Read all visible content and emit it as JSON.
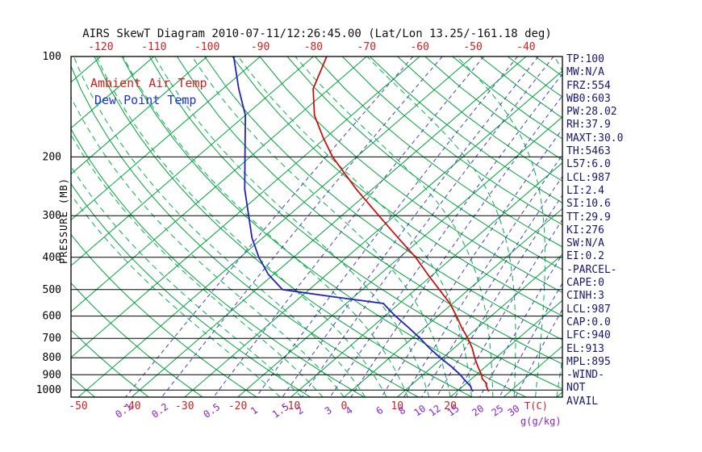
{
  "header": {
    "title": "AIRS SkewT Diagram 2010-07-11/12:26:45.00 (Lat/Lon 13.25/-161.18 deg)"
  },
  "chart_data": {
    "type": "skewt",
    "title": "AIRS SkewT Diagram 2010-07-11/12:26:45.00 (Lat/Lon 13.25/-161.18 deg)",
    "pressure_axis_label": "PRESSURE (MB)",
    "pressure_ticks": [
      100,
      200,
      300,
      400,
      500,
      600,
      700,
      800,
      900,
      1000
    ],
    "pressure_range": [
      100,
      1050
    ],
    "top_temp_ticks_c": [
      -120,
      -110,
      -100,
      -90,
      -80,
      -70,
      -60,
      -50,
      -40
    ],
    "bottom_temp_ticks_c": [
      -50,
      -40,
      -30,
      -20,
      -10,
      0,
      10,
      20
    ],
    "temp_axis_unit": "T(C)",
    "mixing_ratio_ticks_gkg": [
      0.1,
      0.2,
      0.5,
      1,
      1.5,
      2,
      3,
      4,
      6,
      8,
      10,
      12,
      15,
      20,
      25,
      30
    ],
    "mixing_ratio_unit": "g(g/kg)",
    "isotherm_range_c": [
      -120,
      40
    ],
    "isotherm_step_c": 10,
    "dry_adiabat_theta_c": {
      "min": -60,
      "max": 180,
      "step": 10
    },
    "moist_adiabat_start_c": {
      "min": -12,
      "max": 40,
      "step": 4
    },
    "legend": [
      {
        "label": "Ambient Air Temp",
        "color": "#cc2222"
      },
      {
        "label": "Dew Point Temp",
        "color": "#2233cc"
      }
    ],
    "series": [
      {
        "name": "Ambient Air Temp",
        "color": "#cc1111",
        "points": [
          [
            1008,
            26
          ],
          [
            1000,
            25.5
          ],
          [
            975,
            24.5
          ],
          [
            950,
            23.5
          ],
          [
            925,
            22
          ],
          [
            900,
            21
          ],
          [
            850,
            18.5
          ],
          [
            800,
            16
          ],
          [
            750,
            13.5
          ],
          [
            700,
            10.5
          ],
          [
            650,
            7
          ],
          [
            600,
            3.5
          ],
          [
            550,
            -0.5
          ],
          [
            500,
            -5.5
          ],
          [
            450,
            -11
          ],
          [
            400,
            -17
          ],
          [
            350,
            -24.5
          ],
          [
            300,
            -33
          ],
          [
            250,
            -43
          ],
          [
            200,
            -54.5
          ],
          [
            175,
            -60.5
          ],
          [
            150,
            -67
          ],
          [
            125,
            -73
          ],
          [
            100,
            -77.5
          ]
        ]
      },
      {
        "name": "Dew Point Temp",
        "color": "#2222bb",
        "points": [
          [
            1008,
            23
          ],
          [
            1000,
            22.5
          ],
          [
            975,
            21.5
          ],
          [
            950,
            20
          ],
          [
            925,
            18.5
          ],
          [
            900,
            17
          ],
          [
            850,
            13.5
          ],
          [
            800,
            9.5
          ],
          [
            750,
            5.5
          ],
          [
            700,
            1.5
          ],
          [
            650,
            -3
          ],
          [
            600,
            -8
          ],
          [
            575,
            -10.5
          ],
          [
            550,
            -13
          ],
          [
            525,
            -24
          ],
          [
            500,
            -35
          ],
          [
            450,
            -41
          ],
          [
            400,
            -46.5
          ],
          [
            350,
            -52
          ],
          [
            300,
            -57.5
          ],
          [
            250,
            -64
          ],
          [
            200,
            -71
          ],
          [
            150,
            -80
          ],
          [
            125,
            -87
          ],
          [
            100,
            -95
          ]
        ]
      }
    ],
    "colors": {
      "isobar": "#000000",
      "isotherm": "#00a23c",
      "dry_adiabat": "#00a23c",
      "moist_adiabat": "#00b050",
      "mixing_ratio_line": "#4444aa",
      "mixing_ratio_label": "#8822cc",
      "temp_tick": "#cc2222",
      "pressure_tick": "#000000"
    }
  },
  "stats_panel": {
    "color": "#18186a",
    "lines": [
      "TP:100",
      "MW:N/A",
      "FRZ:554",
      "WB0:603",
      "PW:28.02",
      "RH:37.9",
      "MAXT:30.0",
      "TH:5463",
      "L57:6.0",
      "LCL:987",
      "LI:2.4",
      "SI:10.6",
      "TT:29.9",
      "KI:276",
      "SW:N/A",
      "EI:0.2",
      "-PARCEL-",
      "CAPE:0",
      "CINH:3",
      "LCL:987",
      "CAP:0.0",
      "LFC:940",
      "EL:913",
      "MPL:895",
      "-WIND-",
      "NOT",
      "AVAIL"
    ]
  }
}
